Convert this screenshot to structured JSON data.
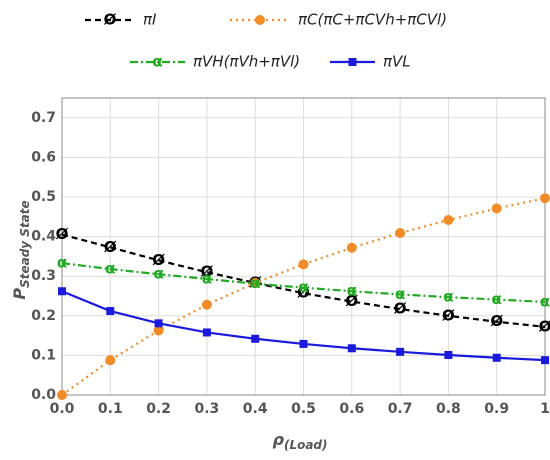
{
  "chart_data": {
    "type": "line",
    "x": [
      0,
      0.1,
      0.2,
      0.3,
      0.4,
      0.5,
      0.6,
      0.7,
      0.8,
      0.9,
      1
    ],
    "series": [
      {
        "name": "πI",
        "color": "#000000",
        "dash": "6,4",
        "marker": "Ø",
        "values": [
          0.405,
          0.373,
          0.34,
          0.31,
          0.283,
          0.257,
          0.236,
          0.217,
          0.2,
          0.185,
          0.172
        ]
      },
      {
        "name": "πC(πC+πCVh+πCVl)",
        "color": "#f28c28",
        "dash": "2,4",
        "marker": "circle",
        "values": [
          0,
          0.088,
          0.163,
          0.228,
          0.283,
          0.33,
          0.372,
          0.409,
          0.442,
          0.471,
          0.497
        ]
      },
      {
        "name": "πVH(πVh+πVl)",
        "color": "#22aa22",
        "dash": "8,3,2,3",
        "marker": "α",
        "values": [
          0.333,
          0.318,
          0.305,
          0.293,
          0.281,
          0.271,
          0.262,
          0.254,
          0.247,
          0.241,
          0.235
        ]
      },
      {
        "name": "πVL",
        "color": "#1a1adc",
        "dash": "",
        "marker": "square",
        "values": [
          0.262,
          0.212,
          0.181,
          0.158,
          0.142,
          0.129,
          0.118,
          0.109,
          0.101,
          0.094,
          0.088
        ]
      }
    ],
    "xlabel": "ρ",
    "xlabel_sub": "(Load)",
    "ylabel": "P",
    "ylabel_sub": "Steady State",
    "xlim": [
      0,
      1
    ],
    "ylim": [
      0,
      0.75
    ],
    "xticks": [
      {
        "value": 0,
        "label": "0.0"
      },
      0.1,
      0.2,
      0.3,
      0.4,
      0.5,
      0.6,
      0.7,
      0.8,
      0.9,
      1
    ],
    "yticks": [
      {
        "value": 0,
        "label": "0.0"
      },
      0.1,
      0.2,
      0.3,
      0.4,
      0.5,
      0.6,
      0.7
    ],
    "grid": true
  }
}
